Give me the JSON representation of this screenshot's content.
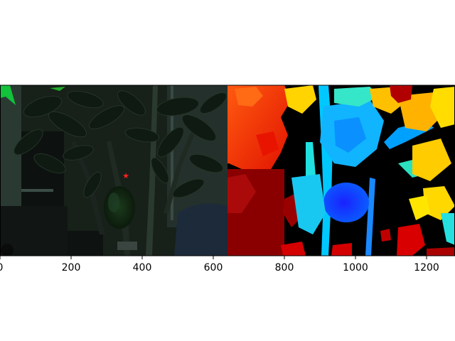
{
  "figure": {
    "left_panel": "rgb camera image of a plant with foliage and a green pepper fruit, marked with a red star",
    "right_panel": "jet-colormap depth image of the same scene",
    "x_axis": {
      "ticks": [
        {
          "value": 0,
          "label": "0"
        },
        {
          "value": 200,
          "label": "200"
        },
        {
          "value": 400,
          "label": "400"
        },
        {
          "value": 600,
          "label": "600"
        },
        {
          "value": 800,
          "label": "800"
        },
        {
          "value": 1000,
          "label": "1000"
        },
        {
          "value": 1200,
          "label": "1200"
        }
      ],
      "range": [
        0,
        1280
      ]
    },
    "colors": {
      "marker": "#ff2020",
      "near": "#0a2cff",
      "far": "#cc0000"
    }
  }
}
